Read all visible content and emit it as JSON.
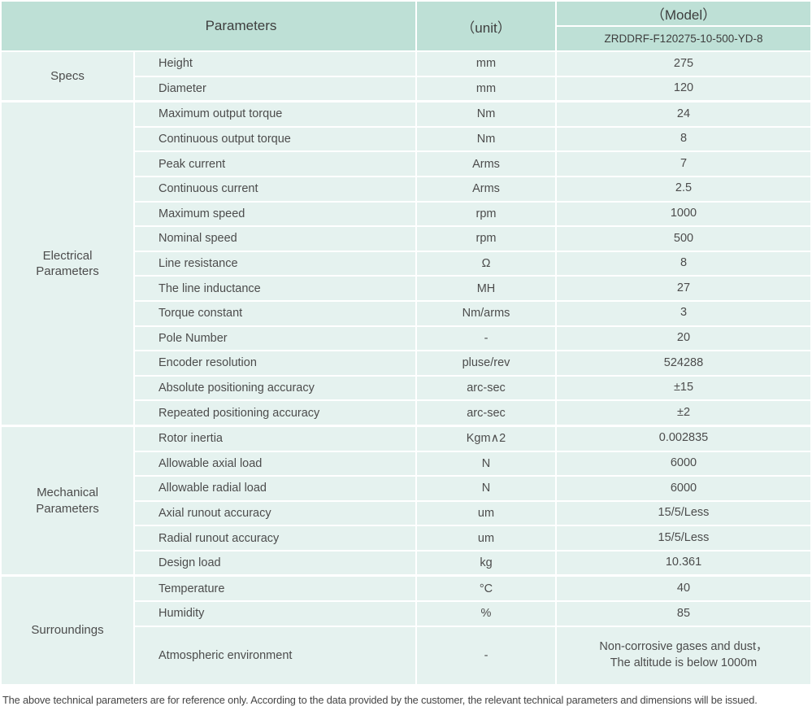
{
  "header": {
    "parameters_label": "Parameters",
    "unit_label": "（unit）",
    "model_label": "（Model）",
    "model_value": "ZRDDRF-F120275-10-500-YD-8"
  },
  "sections": [
    {
      "id": "specs",
      "group": "Specs",
      "rows": [
        {
          "param": "Height",
          "unit": "mm",
          "value": "275"
        },
        {
          "param": "Diameter",
          "unit": "mm",
          "value": "120"
        }
      ]
    },
    {
      "id": "electrical",
      "group": "Electrical Parameters",
      "rows": [
        {
          "param": "Maximum output torque",
          "unit": "Nm",
          "value": "24"
        },
        {
          "param": "Continuous output torque",
          "unit": "Nm",
          "value": "8"
        },
        {
          "param": "Peak current",
          "unit": "Arms",
          "value": "7"
        },
        {
          "param": "Continuous current",
          "unit": "Arms",
          "value": "2.5"
        },
        {
          "param": "Maximum speed",
          "unit": "rpm",
          "value": "1000"
        },
        {
          "param": "Nominal speed",
          "unit": "rpm",
          "value": "500"
        },
        {
          "param": "Line resistance",
          "unit": "Ω",
          "value": "8"
        },
        {
          "param": "The line inductance",
          "unit": "MH",
          "value": "27"
        },
        {
          "param": "Torque constant",
          "unit": "Nm/arms",
          "value": "3"
        },
        {
          "param": "Pole Number",
          "unit": "-",
          "value": "20"
        },
        {
          "param": "Encoder resolution",
          "unit": "pluse/rev",
          "value": "524288"
        },
        {
          "param": "Absolute positioning accuracy",
          "unit": "arc-sec",
          "value": "±15"
        },
        {
          "param": "Repeated positioning accuracy",
          "unit": "arc-sec",
          "value": "±2"
        }
      ]
    },
    {
      "id": "mechanical",
      "group": "Mechanical Parameters",
      "rows": [
        {
          "param": "Rotor inertia",
          "unit": "Kgm∧2",
          "value": "0.002835"
        },
        {
          "param": "Allowable axial load",
          "unit": "N",
          "value": "6000"
        },
        {
          "param": "Allowable radial load",
          "unit": "N",
          "value": "6000"
        },
        {
          "param": "Axial runout accuracy",
          "unit": "um",
          "value": "15/5/Less"
        },
        {
          "param": "Radial runout accuracy",
          "unit": "um",
          "value": "15/5/Less"
        },
        {
          "param": "Design load",
          "unit": "kg",
          "value": "10.361"
        }
      ]
    },
    {
      "id": "surroundings",
      "group": "Surroundings",
      "rows": [
        {
          "param": "Temperature",
          "unit": "°C",
          "value": "40"
        },
        {
          "param": "Humidity",
          "unit": "%",
          "value": "85"
        },
        {
          "param": "Atmospheric environment",
          "unit": "-",
          "value": "Non-corrosive gases and dust，\nThe altitude is below 1000m"
        }
      ]
    }
  ],
  "footnote": "The above technical parameters are for reference only. According to the data provided by the customer, the relevant technical parameters and dimensions will be issued.",
  "colors": {
    "header_bg": "#bee0d6",
    "cell_bg": "#e5f2ef",
    "header_text": "#3e3e3e",
    "cell_text": "#4c4c4c"
  }
}
